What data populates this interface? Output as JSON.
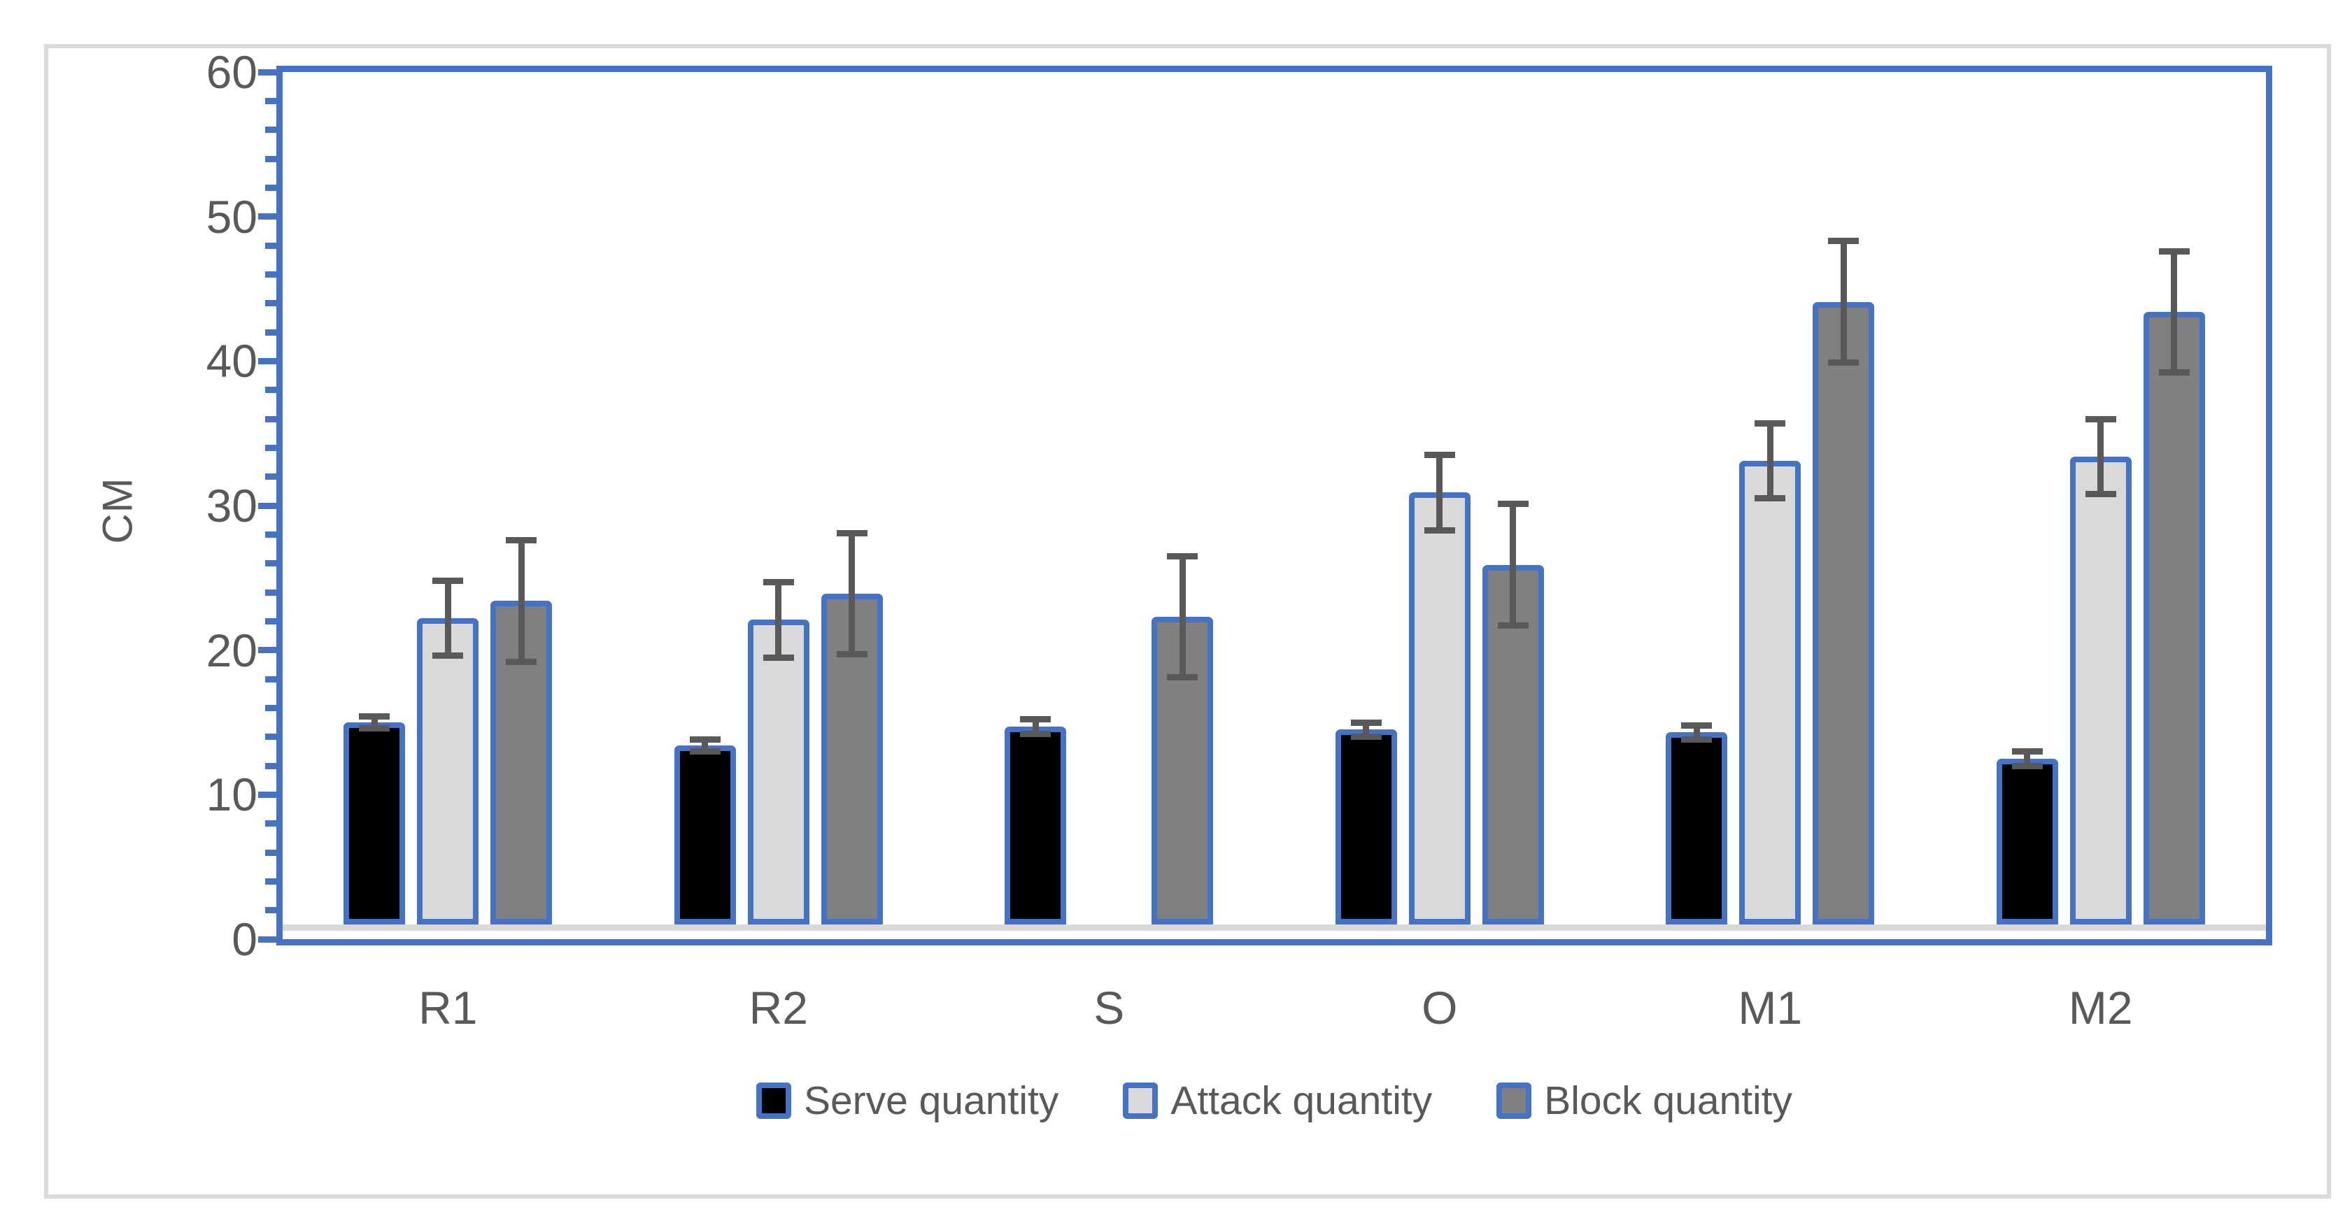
{
  "figure": {
    "border_color": "#DBDBDB",
    "background": "#ffffff"
  },
  "axis": {
    "color": "#4472C4",
    "text_color": "#595959",
    "baseline_color": "#D9D9D9"
  },
  "legend": {
    "items": [
      {
        "label": "Serve quantity",
        "color": "#000000"
      },
      {
        "label": "Attack quantity",
        "color": "#D9D9D9"
      },
      {
        "label": "Block quantity",
        "color": "#808080"
      }
    ]
  },
  "chart_data": {
    "type": "bar",
    "title": "",
    "xlabel": "",
    "ylabel": "CM",
    "ylim": [
      0,
      60
    ],
    "y_major_ticks": [
      0,
      10,
      20,
      30,
      40,
      50,
      60
    ],
    "y_minor_step": 2,
    "grid": false,
    "legend_position": "bottom",
    "bar_border_color": "#4472C4",
    "error_bar_color": "#595959",
    "categories": [
      "R1",
      "R2",
      "S",
      "O",
      "M1",
      "M2"
    ],
    "series": [
      {
        "name": "Serve quantity",
        "color": "#000000",
        "values": [
          15,
          13.4,
          14.7,
          14.5,
          14.3,
          12.5
        ],
        "errors": [
          0.4,
          0.4,
          0.5,
          0.5,
          0.5,
          0.5
        ]
      },
      {
        "name": "Attack quantity",
        "color": "#D9D9D9",
        "values": [
          22.2,
          22.1,
          null,
          30.9,
          33.1,
          33.4
        ],
        "errors": [
          2.6,
          2.6,
          null,
          2.6,
          2.6,
          2.6
        ]
      },
      {
        "name": "Block quantity",
        "color": "#808080",
        "values": [
          23.4,
          23.9,
          22.3,
          25.9,
          44.1,
          43.4
        ],
        "errors": [
          4.2,
          4.2,
          4.2,
          4.2,
          4.2,
          4.2
        ]
      }
    ]
  }
}
